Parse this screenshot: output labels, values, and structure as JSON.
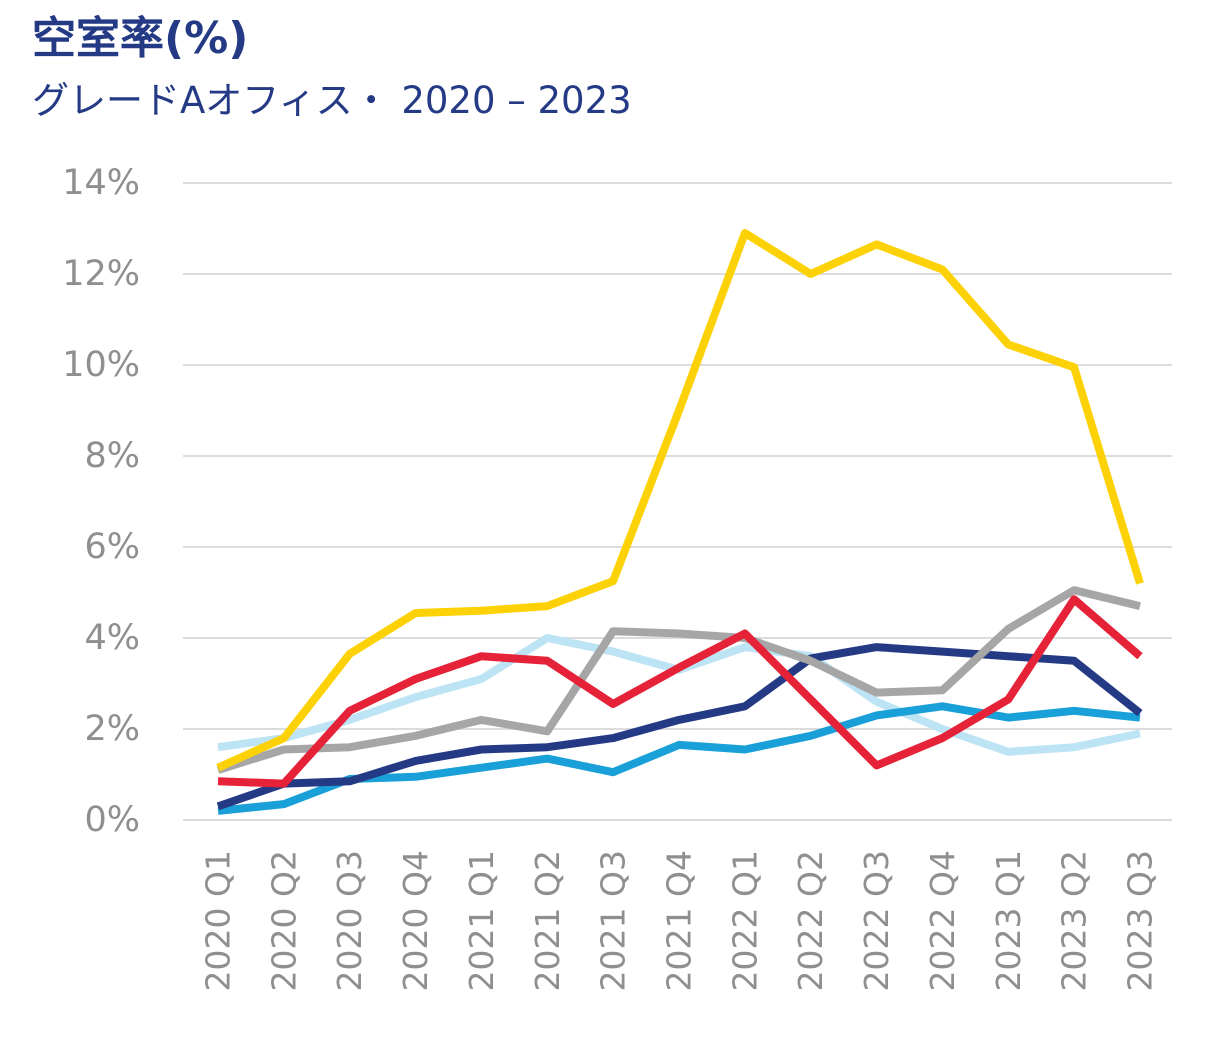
{
  "chart_data": {
    "type": "line",
    "title": "空室率(%)",
    "subtitle": "グレードAオフィス・ 2020 – 2023",
    "xlabel": "",
    "ylabel": "",
    "ylim": [
      0,
      14
    ],
    "yticks": [
      0,
      2,
      4,
      6,
      8,
      10,
      12,
      14
    ],
    "ytick_labels": [
      "0%",
      "2%",
      "4%",
      "6%",
      "8%",
      "10%",
      "12%",
      "14%"
    ],
    "grid": true,
    "legend": "none",
    "categories": [
      "2020 Q1",
      "2020 Q2",
      "2020 Q3",
      "2020 Q4",
      "2021 Q1",
      "2021 Q2",
      "2021 Q3",
      "2021 Q4",
      "2022 Q1",
      "2022 Q2",
      "2022 Q3",
      "2022 Q4",
      "2023 Q1",
      "2023 Q2",
      "2023 Q3"
    ],
    "series": [
      {
        "name": "light-blue",
        "color": "#bde4f4",
        "values": [
          1.6,
          1.8,
          2.2,
          2.7,
          3.1,
          4.0,
          3.7,
          3.3,
          3.8,
          3.6,
          2.6,
          2.0,
          1.5,
          1.6,
          1.9
        ]
      },
      {
        "name": "blue",
        "color": "#1aa0d8",
        "values": [
          0.2,
          0.35,
          0.9,
          0.95,
          1.15,
          1.35,
          1.05,
          1.65,
          1.55,
          1.85,
          2.3,
          2.5,
          2.25,
          2.4,
          2.25
        ]
      },
      {
        "name": "navy",
        "color": "#243a85",
        "values": [
          0.3,
          0.8,
          0.85,
          1.3,
          1.55,
          1.6,
          1.8,
          2.2,
          2.5,
          3.55,
          3.8,
          3.7,
          3.6,
          3.5,
          2.35
        ]
      },
      {
        "name": "gray",
        "color": "#a6a6a6",
        "values": [
          1.1,
          1.55,
          1.6,
          1.85,
          2.2,
          1.95,
          4.15,
          4.1,
          4.0,
          3.5,
          2.8,
          2.85,
          4.2,
          5.05,
          4.7
        ]
      },
      {
        "name": "red",
        "color": "#e52238",
        "values": [
          0.85,
          0.8,
          2.4,
          3.1,
          3.6,
          3.5,
          2.55,
          3.35,
          4.1,
          2.65,
          1.2,
          1.8,
          2.65,
          4.85,
          3.6
        ]
      },
      {
        "name": "yellow",
        "color": "#fcd206",
        "values": [
          1.15,
          1.8,
          3.65,
          4.55,
          4.6,
          4.7,
          5.25,
          9.0,
          12.9,
          12.0,
          12.65,
          12.1,
          10.45,
          9.95,
          5.2
        ]
      }
    ]
  }
}
